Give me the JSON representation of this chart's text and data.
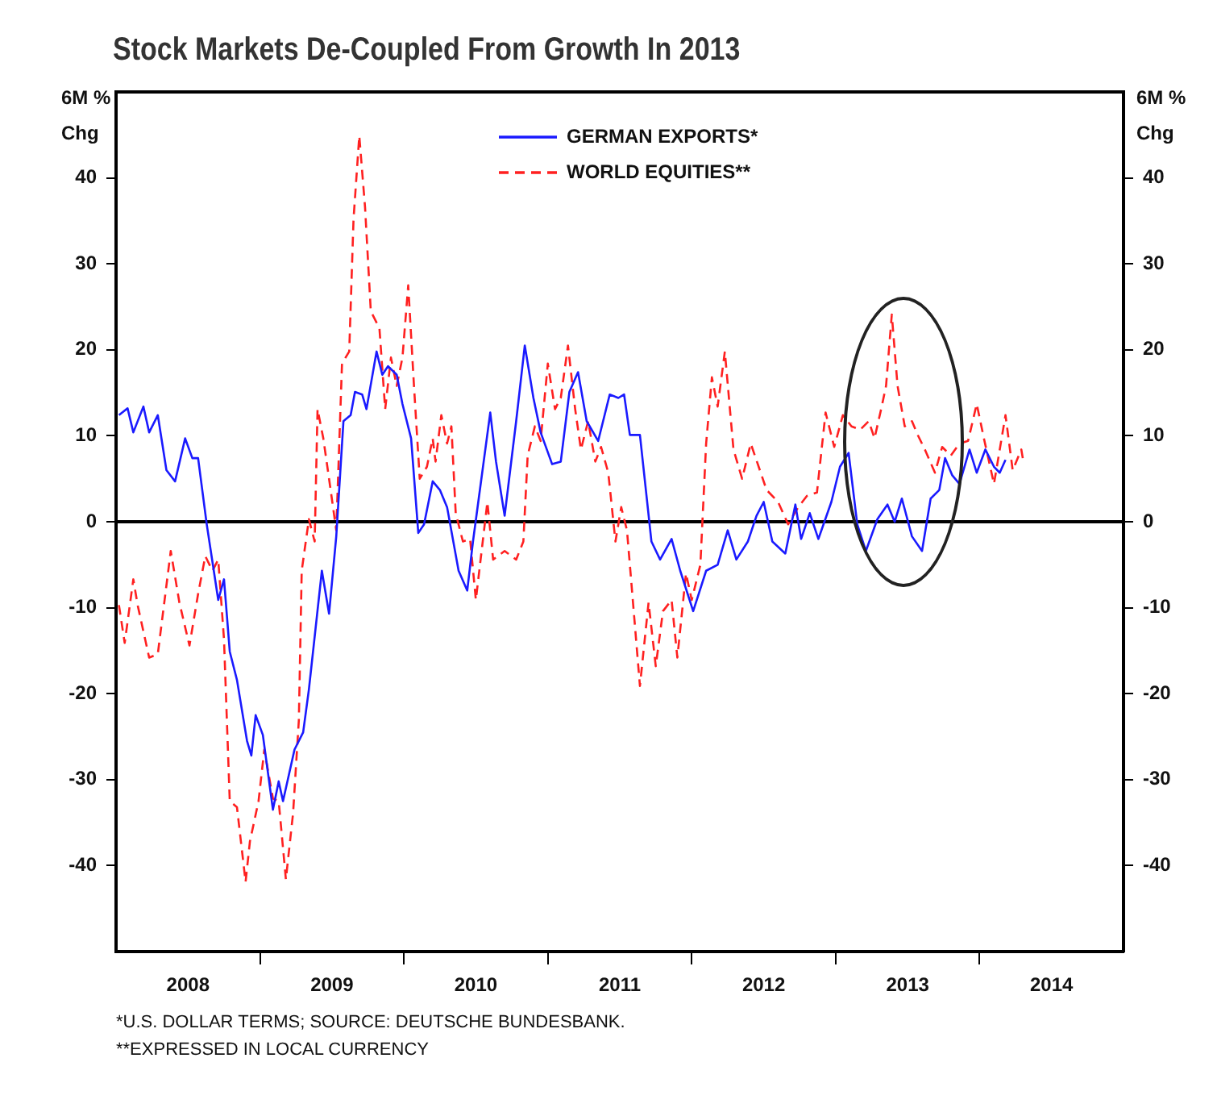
{
  "chart_data": {
    "type": "line",
    "title": "Stock Markets De-Coupled From Growth In 2013",
    "ylabel": "6M % Chg",
    "y2label": "6M % Chg",
    "annotations": [
      "*U.S. DOLLAR TERMS; SOURCE: DEUTSCHE BUNDESBANK.",
      "**EXPRESSED IN LOCAL CURRENCY"
    ],
    "xlim": [
      2008,
      2015
    ],
    "xticks": [
      {
        "value": 2008.5,
        "label": "2008"
      },
      {
        "value": 2009,
        "label": null
      },
      {
        "value": 2009.5,
        "label": "2009"
      },
      {
        "value": 2010,
        "label": null
      },
      {
        "value": 2010.5,
        "label": "2010"
      },
      {
        "value": 2011,
        "label": null
      },
      {
        "value": 2011.5,
        "label": "2011"
      },
      {
        "value": 2012,
        "label": null
      },
      {
        "value": 2012.5,
        "label": "2012"
      },
      {
        "value": 2013,
        "label": null
      },
      {
        "value": 2013.5,
        "label": "2013"
      },
      {
        "value": 2014,
        "label": null
      },
      {
        "value": 2014.5,
        "label": "2014"
      }
    ],
    "ylim": [
      -50,
      50
    ],
    "yticks": [
      -40,
      -30,
      -20,
      -10,
      0,
      10,
      20,
      30,
      40
    ],
    "y2lim": [
      -50,
      50
    ],
    "y2ticks": [
      -40,
      -30,
      -20,
      -10,
      0,
      10,
      20,
      30,
      40
    ],
    "ref_lines": [
      {
        "axis": "y",
        "value": 0,
        "color": "#000000"
      }
    ],
    "legend": "top",
    "grid": false,
    "marker": "none",
    "series": [
      {
        "name": "GERMAN EXPORTS*",
        "color": "#1a1aff",
        "line_style": "solid",
        "x": [
          2008.02,
          2008.08,
          2008.12,
          2008.19,
          2008.23,
          2008.29,
          2008.35,
          2008.41,
          2008.48,
          2008.53,
          2008.57,
          2008.63,
          2008.71,
          2008.75,
          2008.79,
          2008.84,
          2008.91,
          2008.94,
          2008.97,
          2009.02,
          2009.09,
          2009.13,
          2009.16,
          2009.24,
          2009.3,
          2009.34,
          2009.43,
          2009.48,
          2009.53,
          2009.58,
          2009.63,
          2009.66,
          2009.71,
          2009.74,
          2009.81,
          2009.85,
          2009.89,
          2009.95,
          2009.99,
          2010.05,
          2010.1,
          2010.14,
          2010.2,
          2010.25,
          2010.3,
          2010.38,
          2010.44,
          2010.48,
          2010.6,
          2010.64,
          2010.7,
          2010.78,
          2010.84,
          2010.9,
          2010.95,
          2011.03,
          2011.09,
          2011.15,
          2011.21,
          2011.27,
          2011.35,
          2011.43,
          2011.49,
          2011.53,
          2011.57,
          2011.64,
          2011.72,
          2011.78,
          2011.86,
          2011.92,
          2012.01,
          2012.1,
          2012.18,
          2012.25,
          2012.31,
          2012.39,
          2012.45,
          2012.5,
          2012.56,
          2012.65,
          2012.72,
          2012.76,
          2012.82,
          2012.88,
          2012.97,
          2013.03,
          2013.09,
          2013.15,
          2013.21,
          2013.29,
          2013.36,
          2013.41,
          2013.46,
          2013.53,
          2013.6,
          2013.66,
          2013.72,
          2013.76,
          2013.81,
          2013.86,
          2013.93,
          2013.98,
          2014.04,
          2014.1,
          2014.14,
          2014.18
        ],
        "values": [
          12.4,
          13.2,
          10.4,
          13.4,
          10.4,
          12.4,
          6.0,
          4.7,
          9.7,
          7.4,
          7.4,
          -0.3,
          -9.1,
          -6.7,
          -15.1,
          -18.4,
          -25.5,
          -27.2,
          -22.5,
          -24.8,
          -33.5,
          -30.2,
          -32.5,
          -26.5,
          -24.5,
          -19.5,
          -5.7,
          -10.7,
          -1.7,
          11.7,
          12.4,
          15.1,
          14.8,
          13.1,
          19.8,
          17.1,
          18.1,
          17.1,
          13.7,
          9.7,
          -1.3,
          -0.3,
          4.7,
          3.7,
          1.7,
          -5.7,
          -8.0,
          -2.3,
          12.7,
          7.0,
          0.7,
          11.7,
          20.5,
          14.4,
          10.4,
          6.7,
          7.0,
          15.1,
          17.4,
          11.7,
          9.4,
          14.8,
          14.4,
          14.8,
          10.1,
          10.1,
          -2.3,
          -4.4,
          -2.0,
          -5.7,
          -10.4,
          -5.7,
          -5.0,
          -1.0,
          -4.4,
          -2.3,
          0.7,
          2.3,
          -2.3,
          -3.7,
          2.0,
          -2.0,
          1.0,
          -2.0,
          2.3,
          6.4,
          8.0,
          -0.3,
          -3.4,
          0.3,
          2.0,
          0,
          2.7,
          -1.7,
          -3.4,
          2.7,
          3.7,
          7.4,
          5.4,
          4.4,
          8.4,
          5.7,
          8.4,
          6.4,
          5.7,
          7.2
        ]
      },
      {
        "name": "WORLD EQUITIES**",
        "color": "#ff2020",
        "line_style": "dashed",
        "x": [
          2008.02,
          2008.06,
          2008.12,
          2008.15,
          2008.23,
          2008.29,
          2008.38,
          2008.44,
          2008.51,
          2008.57,
          2008.62,
          2008.67,
          2008.71,
          2008.75,
          2008.79,
          2008.84,
          2008.9,
          2008.93,
          2008.99,
          2009.03,
          2009.09,
          2009.13,
          2009.18,
          2009.23,
          2009.27,
          2009.29,
          2009.34,
          2009.38,
          2009.4,
          2009.44,
          2009.48,
          2009.53,
          2009.57,
          2009.62,
          2009.65,
          2009.69,
          2009.73,
          2009.77,
          2009.83,
          2009.87,
          2009.91,
          2009.95,
          2009.99,
          2010.03,
          2010.07,
          2010.11,
          2010.16,
          2010.2,
          2010.22,
          2010.26,
          2010.3,
          2010.33,
          2010.36,
          2010.41,
          2010.46,
          2010.5,
          2010.58,
          2010.62,
          2010.7,
          2010.78,
          2010.83,
          2010.86,
          2010.91,
          2010.95,
          2011.0,
          2011.05,
          2011.09,
          2011.14,
          2011.19,
          2011.23,
          2011.28,
          2011.33,
          2011.37,
          2011.42,
          2011.47,
          2011.51,
          2011.55,
          2011.58,
          2011.64,
          2011.7,
          2011.75,
          2011.8,
          2011.86,
          2011.9,
          2011.96,
          2012.0,
          2012.06,
          2012.1,
          2012.14,
          2012.18,
          2012.23,
          2012.29,
          2012.35,
          2012.41,
          2012.52,
          2012.6,
          2012.67,
          2012.74,
          2012.8,
          2012.87,
          2012.93,
          2012.99,
          2013.05,
          2013.11,
          2013.17,
          2013.23,
          2013.27,
          2013.32,
          2013.35,
          2013.39,
          2013.43,
          2013.48,
          2013.53,
          2013.57,
          2013.62,
          2013.69,
          2013.74,
          2013.8,
          2013.86,
          2013.92,
          2013.98,
          2014.03,
          2014.1,
          2014.18,
          2014.23,
          2014.29,
          2014.3
        ],
        "values": [
          -9.7,
          -14.1,
          -6.7,
          -9.7,
          -15.8,
          -15.4,
          -3.4,
          -9.4,
          -14.4,
          -8.4,
          -4.0,
          -5.7,
          -4.4,
          -13.7,
          -32.5,
          -33.2,
          -41.9,
          -37.2,
          -32.5,
          -26.5,
          -32.2,
          -32.5,
          -41.6,
          -33.9,
          -23.1,
          -5.7,
          0.3,
          -2.3,
          13.1,
          9.7,
          5.0,
          -1.0,
          18.4,
          19.8,
          35.2,
          44.9,
          36.6,
          24.5,
          22.5,
          13.1,
          19.1,
          15.8,
          19.1,
          27.5,
          15.8,
          5.0,
          6.4,
          9.7,
          7.0,
          12.4,
          9.1,
          11.1,
          1.0,
          -2.3,
          -2.0,
          -9.1,
          2.3,
          -4.4,
          -3.4,
          -4.4,
          -2.3,
          7.7,
          11.1,
          9.4,
          18.4,
          13.1,
          14.4,
          20.5,
          13.1,
          8.4,
          11.7,
          7.0,
          8.7,
          5.7,
          -2.3,
          1.7,
          -1.0,
          -7.0,
          -19.1,
          -9.4,
          -16.8,
          -10.4,
          -9.1,
          -15.8,
          -6.0,
          -9.1,
          -5.0,
          9.1,
          16.8,
          13.4,
          19.8,
          8.4,
          5.0,
          9.1,
          3.7,
          2.3,
          -0.3,
          1.7,
          3.0,
          3.4,
          12.7,
          8.7,
          12.4,
          11.1,
          10.7,
          11.7,
          9.7,
          13.4,
          15.8,
          24.1,
          15.8,
          11.1,
          11.7,
          10.1,
          8.4,
          5.7,
          8.7,
          7.7,
          9.1,
          9.4,
          13.7,
          9.7,
          4.4,
          12.4,
          6.0,
          8.4,
          7.4
        ]
      }
    ]
  }
}
